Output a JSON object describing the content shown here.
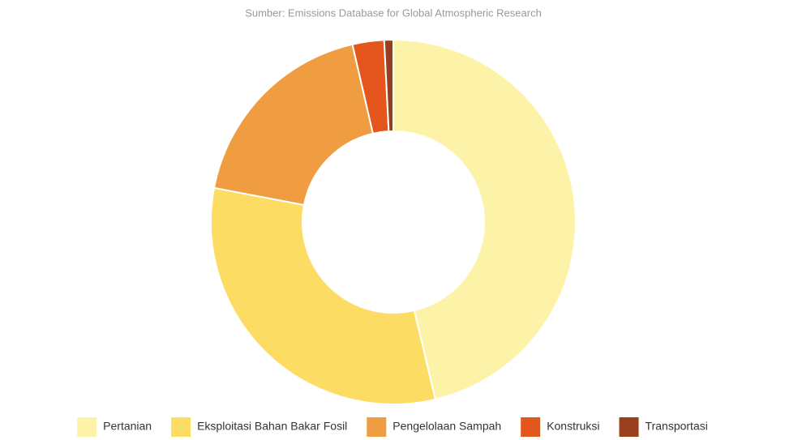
{
  "chart_data": {
    "type": "pie",
    "subtitle": "Sumber: Emissions Database for Global Atmospheric Research",
    "categories": [
      "Pertanian",
      "Eksploitasi Bahan Bakar Fosil",
      "Pengelolaan Sampah",
      "Konstruksi",
      "Transportasi"
    ],
    "values": [
      46.3,
      31.7,
      18.4,
      2.8,
      0.8
    ],
    "colors": [
      "#fdf3a8",
      "#fcdc62",
      "#f09c40",
      "#e5561e",
      "#9a3e20"
    ],
    "legend": "bottom"
  }
}
